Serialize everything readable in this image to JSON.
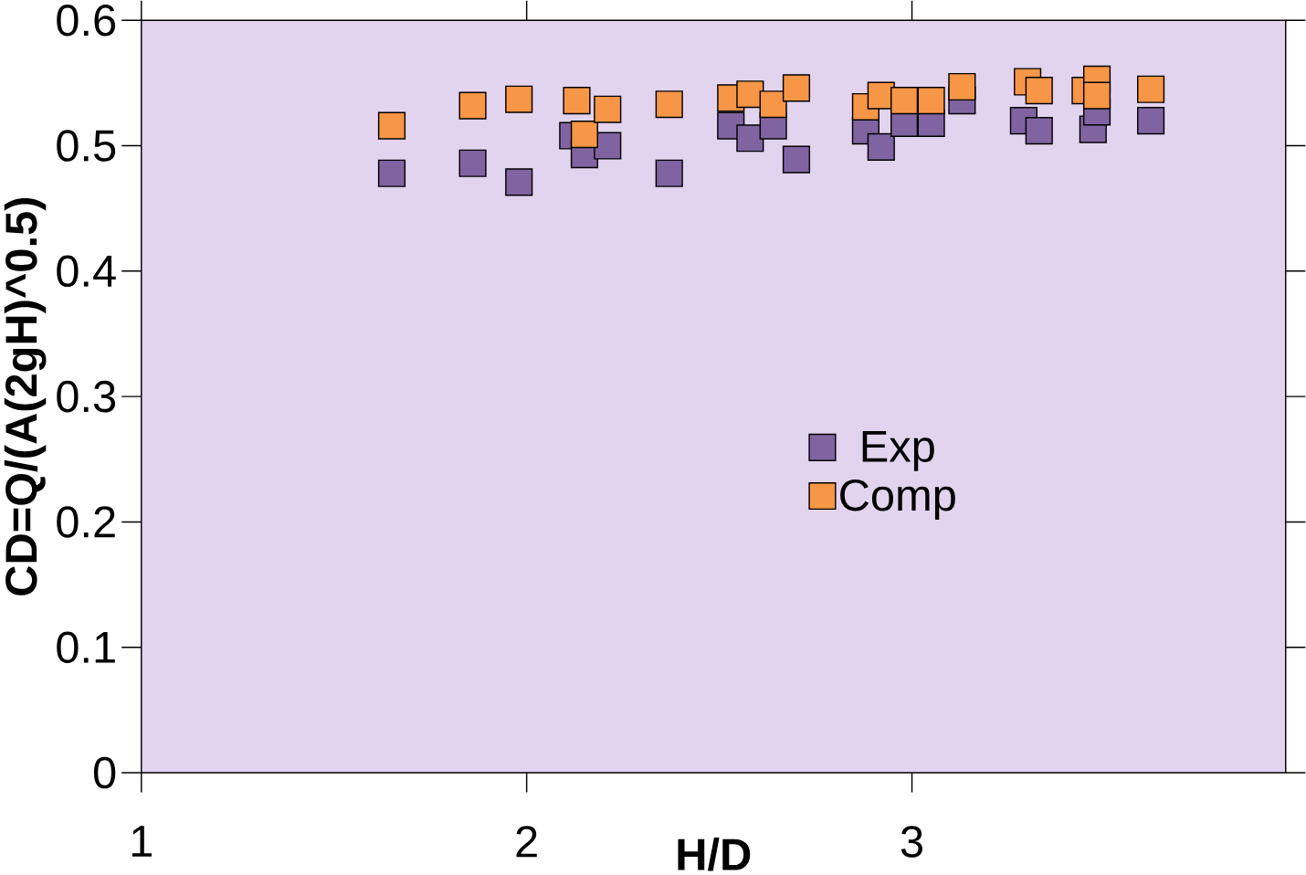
{
  "chart_data": {
    "type": "scatter",
    "xlabel": "H/D",
    "ylabel": "CD=Q/(A(2gH)^0.5)",
    "xlim": [
      1,
      3.97
    ],
    "xticks": [
      1,
      2,
      3
    ],
    "ylim": [
      0,
      0.6
    ],
    "yticks": [
      0,
      0.1,
      0.2,
      0.3,
      0.4,
      0.5,
      0.6
    ],
    "grid": false,
    "legend": "right",
    "marker": "square",
    "series": [
      {
        "name": "Exp",
        "color": "#8064a2",
        "x": [
          1.65,
          1.86,
          1.98,
          2.12,
          2.15,
          2.21,
          2.37,
          2.53,
          2.58,
          2.64,
          2.7,
          2.88,
          2.92,
          2.98,
          3.05,
          3.13,
          3.29,
          3.33,
          3.47,
          3.48,
          3.62
        ],
        "values": [
          0.478,
          0.486,
          0.471,
          0.508,
          0.493,
          0.5,
          0.478,
          0.516,
          0.506,
          0.516,
          0.489,
          0.512,
          0.499,
          0.518,
          0.518,
          0.536,
          0.52,
          0.512,
          0.513,
          0.527,
          0.52
        ]
      },
      {
        "name": "Comp",
        "color": "#f79646",
        "x": [
          1.65,
          1.86,
          1.98,
          2.13,
          2.15,
          2.21,
          2.37,
          2.53,
          2.58,
          2.64,
          2.7,
          2.88,
          2.92,
          2.98,
          3.05,
          3.13,
          3.3,
          3.33,
          3.45,
          3.48,
          3.48,
          3.62
        ],
        "values": [
          0.516,
          0.532,
          0.537,
          0.536,
          0.509,
          0.529,
          0.533,
          0.538,
          0.541,
          0.533,
          0.546,
          0.531,
          0.54,
          0.536,
          0.536,
          0.547,
          0.551,
          0.544,
          0.544,
          0.553,
          0.54,
          0.545
        ]
      }
    ]
  }
}
